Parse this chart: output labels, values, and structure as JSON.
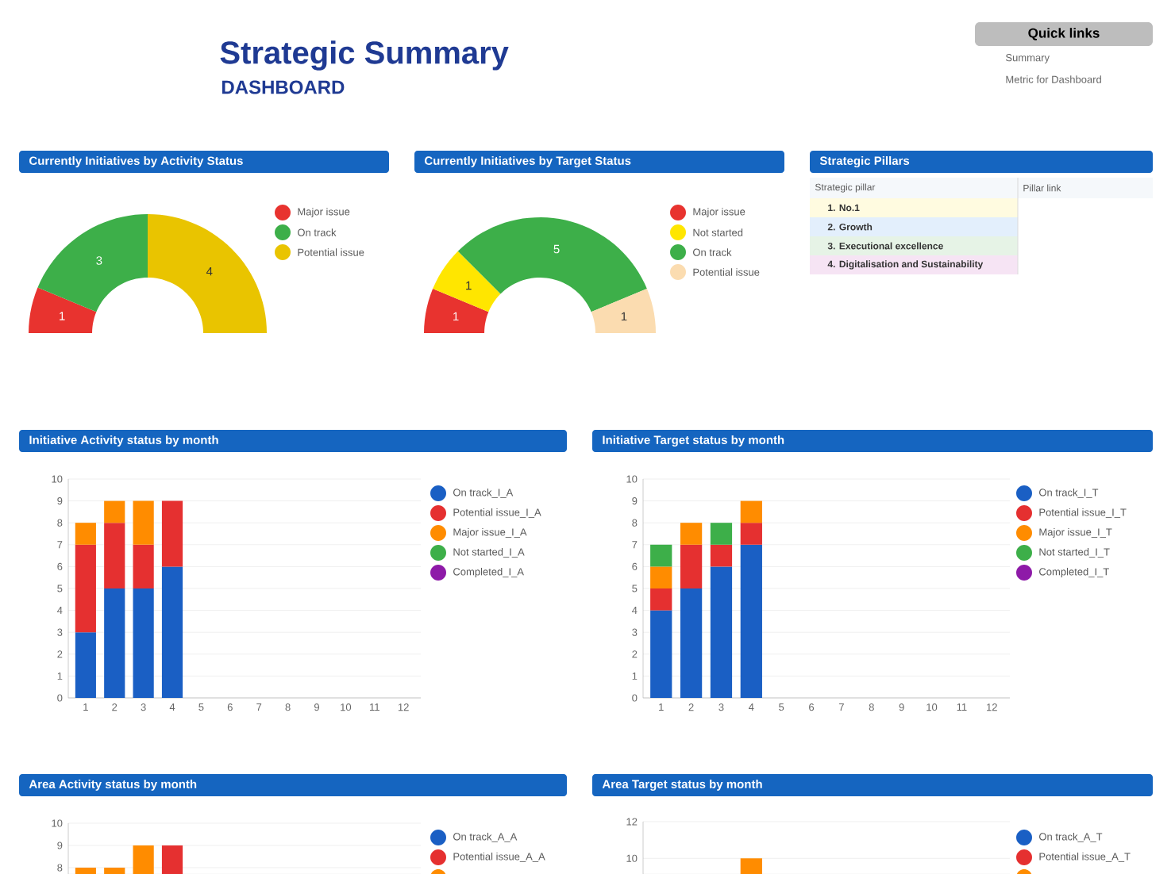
{
  "chart_data": [
    {
      "type": "other",
      "title": "Strategic Summary",
      "subtitle": "DASHBOARD"
    },
    {
      "type": "other",
      "title": "Quick links",
      "annotations": [
        "Summary",
        "Metric for Dashboard"
      ]
    },
    {
      "type": "donut",
      "title": "Currently Initiatives by Activity Status",
      "categories": [
        "Major issue",
        "On track",
        "Potential issue"
      ],
      "values": [
        1,
        3,
        4
      ],
      "colors": [
        "#e8332f",
        "#3daf49",
        "#e9c400"
      ],
      "data_labels": true,
      "legend": "right"
    },
    {
      "type": "donut",
      "title": "Currently Initiatives by Target Status",
      "categories": [
        "Major issue",
        "Not started",
        "On track",
        "Potential issue"
      ],
      "values": [
        1,
        1,
        5,
        1
      ],
      "colors": [
        "#e8332f",
        "#ffe600",
        "#3daf49",
        "#fbdcb0"
      ],
      "data_labels": true,
      "legend": "right"
    },
    {
      "type": "other",
      "title": "Strategic Pillars",
      "annotations": [
        "Strategic pillar",
        "Pillar link",
        "1. No.1",
        "2. Growth",
        "3. Executional excellence",
        "4. Digitalisation and Sustainability"
      ]
    },
    {
      "type": "bar",
      "title": "Initiative Activity status by month",
      "stacked": true,
      "legend": "right",
      "grid": "y",
      "categories": [
        "1",
        "2",
        "3",
        "4",
        "5",
        "6",
        "7",
        "8",
        "9",
        "10",
        "11",
        "12"
      ],
      "ylim": [
        0,
        10
      ],
      "yticks": [
        0,
        1,
        2,
        3,
        4,
        5,
        6,
        7,
        8,
        9,
        10
      ],
      "series": [
        {
          "name": "On track_I_A",
          "color": "#1a5fc4",
          "values": [
            3,
            5,
            5,
            6,
            null,
            null,
            null,
            null,
            null,
            null,
            null,
            null
          ]
        },
        {
          "name": "Potential issue_I_A",
          "color": "#e53030",
          "values": [
            4,
            3,
            2,
            3,
            null,
            null,
            null,
            null,
            null,
            null,
            null,
            null
          ]
        },
        {
          "name": "Major issue_I_A",
          "color": "#ff8c00",
          "values": [
            1,
            1,
            2,
            null,
            null,
            null,
            null,
            null,
            null,
            null,
            null,
            null
          ]
        },
        {
          "name": "Not started_I_A",
          "color": "#3daf49",
          "values": [
            null,
            null,
            null,
            null,
            null,
            null,
            null,
            null,
            null,
            null,
            null,
            null
          ]
        },
        {
          "name": "Completed_I_A",
          "color": "#8e1aa8",
          "values": [
            null,
            null,
            null,
            null,
            null,
            null,
            null,
            null,
            null,
            null,
            null,
            null
          ]
        }
      ]
    },
    {
      "type": "bar",
      "title": "Initiative Target status by month",
      "stacked": true,
      "legend": "right",
      "grid": "y",
      "categories": [
        "1",
        "2",
        "3",
        "4",
        "5",
        "6",
        "7",
        "8",
        "9",
        "10",
        "11",
        "12"
      ],
      "ylim": [
        0,
        10
      ],
      "yticks": [
        0,
        1,
        2,
        3,
        4,
        5,
        6,
        7,
        8,
        9,
        10
      ],
      "series": [
        {
          "name": "On track_I_T",
          "color": "#1a5fc4",
          "values": [
            4,
            5,
            6,
            7,
            null,
            null,
            null,
            null,
            null,
            null,
            null,
            null
          ]
        },
        {
          "name": "Potential issue_I_T",
          "color": "#e53030",
          "values": [
            1,
            2,
            1,
            1,
            null,
            null,
            null,
            null,
            null,
            null,
            null,
            null
          ]
        },
        {
          "name": "Major issue_I_T",
          "color": "#ff8c00",
          "values": [
            1,
            1,
            null,
            1,
            null,
            null,
            null,
            null,
            null,
            null,
            null,
            null
          ]
        },
        {
          "name": "Not started_I_T",
          "color": "#3daf49",
          "values": [
            1,
            null,
            1,
            null,
            null,
            null,
            null,
            null,
            null,
            null,
            null,
            null
          ]
        },
        {
          "name": "Completed_I_T",
          "color": "#8e1aa8",
          "values": [
            null,
            null,
            null,
            null,
            null,
            null,
            null,
            null,
            null,
            null,
            null,
            null
          ]
        }
      ]
    },
    {
      "type": "bar",
      "title": "Area Activity status by month",
      "legend": "right",
      "grid": "y",
      "tick_labels": "y",
      "categories": [
        null,
        null,
        null,
        null,
        null,
        null,
        null,
        null,
        null,
        null,
        null,
        null
      ],
      "ylim": [
        7.7,
        10
      ],
      "yticks": [
        8,
        9,
        10
      ],
      "series": [
        {
          "name": "On track_A_A",
          "color": "#1a5fc4",
          "values": [
            null,
            null,
            null,
            null,
            null,
            null,
            null,
            null,
            null,
            null,
            null,
            null
          ]
        },
        {
          "name": "Potential issue_A_A",
          "color": "#e53030",
          "values": [
            null,
            null,
            null,
            9,
            null,
            null,
            null,
            null,
            null,
            null,
            null,
            null
          ]
        },
        {
          "color": "#ff8c00",
          "values": [
            8,
            8,
            9,
            null,
            null,
            null,
            null,
            null,
            null,
            null,
            null,
            null
          ]
        }
      ]
    },
    {
      "type": "bar",
      "title": "Area Target status by month",
      "legend": "right",
      "grid": "y",
      "tick_labels": "y",
      "categories": [
        null,
        null,
        null,
        null,
        null,
        null,
        null,
        null,
        null,
        null,
        null,
        null
      ],
      "ylim": [
        9.13,
        12
      ],
      "yticks": [
        10,
        12
      ],
      "series": [
        {
          "name": "On track_A_T",
          "color": "#1a5fc4",
          "values": [
            null,
            null,
            null,
            null,
            null,
            null,
            null,
            null,
            null,
            null,
            null,
            null
          ]
        },
        {
          "name": "Potential issue_A_T",
          "color": "#e53030",
          "values": [
            null,
            null,
            null,
            null,
            null,
            null,
            null,
            null,
            null,
            null,
            null,
            null
          ]
        },
        {
          "color": "#ff8c00",
          "values": [
            null,
            null,
            null,
            10,
            null,
            null,
            null,
            null,
            null,
            null,
            null,
            null
          ]
        }
      ]
    }
  ]
}
